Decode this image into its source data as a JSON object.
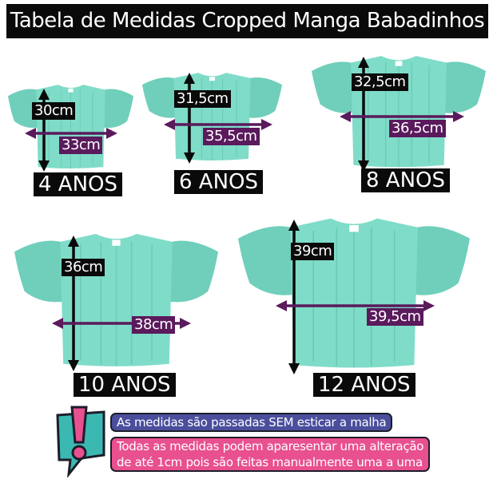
{
  "title": "Tabela de Medidas Cropped Manga Babadinhos",
  "colors": {
    "shirt": "#7fdcc8",
    "vertical_label_bg": "#0a0a0a",
    "horizontal_label_bg": "#5a1a5c",
    "note_blue": "#4a4e9c",
    "note_pink": "#e8508f"
  },
  "sizes": [
    {
      "age": "4 ANOS",
      "length": "30cm",
      "width": "33cm"
    },
    {
      "age": "6 ANOS",
      "length": "31,5cm",
      "width": "35,5cm"
    },
    {
      "age": "8 ANOS",
      "length": "32,5cm",
      "width": "36,5cm"
    },
    {
      "age": "10 ANOS",
      "length": "36cm",
      "width": "38cm"
    },
    {
      "age": "12 ANOS",
      "length": "39cm",
      "width": "39,5cm"
    }
  ],
  "notes": {
    "icon": "exclamation-speech-bubble-icon",
    "line1": "As medidas são passadas SEM esticar a malha",
    "line2a": "Todas as medidas podem aparesentar uma alteração",
    "line2b": "de até 1cm pois são feitas manualmente uma a uma"
  }
}
